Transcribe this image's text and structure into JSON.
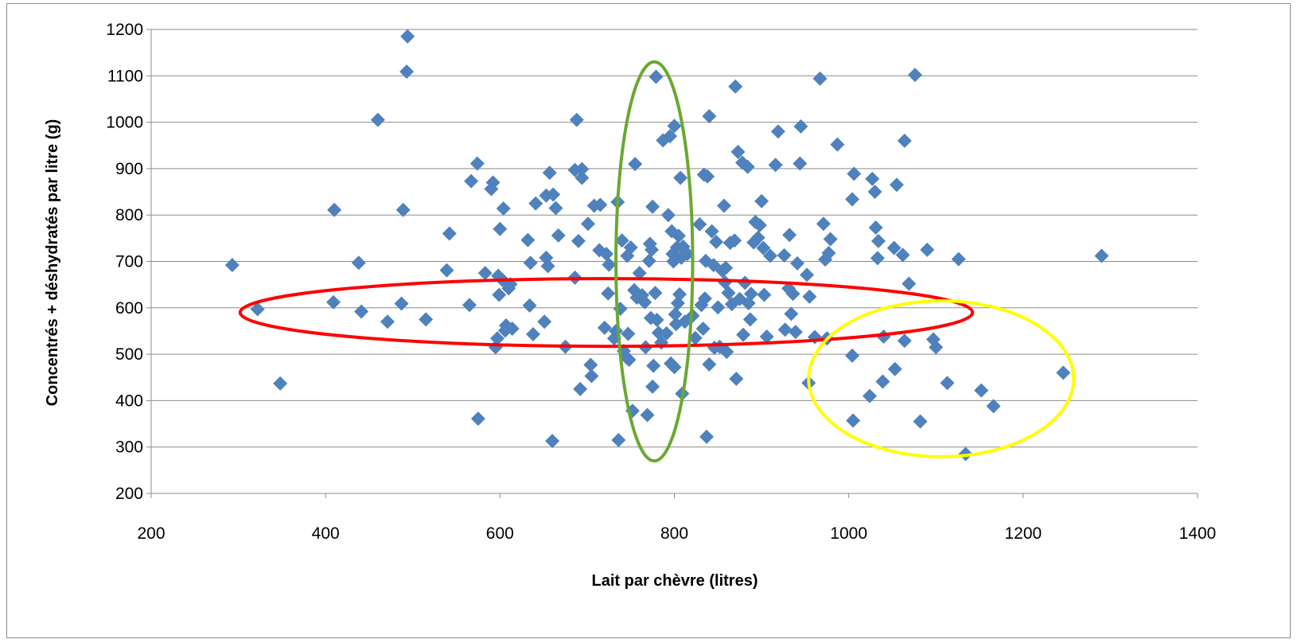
{
  "chart_data": {
    "type": "scatter",
    "title": "",
    "xlabel": "Lait par chèvre (litres)",
    "ylabel": "Concentrés + déshydratés par litre (g)",
    "xlim": [
      200,
      1400
    ],
    "ylim": [
      200,
      1200
    ],
    "x_ticks": [
      200,
      400,
      600,
      800,
      1000,
      1200,
      1400
    ],
    "y_ticks": [
      200,
      300,
      400,
      500,
      600,
      700,
      800,
      900,
      1000,
      1100,
      1200
    ],
    "grid": "horizontal",
    "legend": "none",
    "marker": "diamond",
    "marker_color": "#4f81bd",
    "points": [
      [
        293,
        692
      ],
      [
        322,
        597
      ],
      [
        348,
        437
      ],
      [
        410,
        811
      ],
      [
        409,
        612
      ],
      [
        438,
        697
      ],
      [
        441,
        592
      ],
      [
        460,
        1005
      ],
      [
        471,
        570
      ],
      [
        487,
        609
      ],
      [
        489,
        811
      ],
      [
        493,
        1109
      ],
      [
        494,
        1185
      ],
      [
        515,
        575
      ],
      [
        539,
        681
      ],
      [
        542,
        760
      ],
      [
        565,
        606
      ],
      [
        567,
        873
      ],
      [
        574,
        911
      ],
      [
        575,
        361
      ],
      [
        583,
        675
      ],
      [
        590,
        856
      ],
      [
        592,
        870
      ],
      [
        595,
        515
      ],
      [
        597,
        534
      ],
      [
        598,
        669
      ],
      [
        599,
        628
      ],
      [
        600,
        770
      ],
      [
        603,
        660
      ],
      [
        604,
        814
      ],
      [
        606,
        551
      ],
      [
        607,
        562
      ],
      [
        610,
        642
      ],
      [
        612,
        651
      ],
      [
        614,
        555
      ],
      [
        632,
        746
      ],
      [
        634,
        605
      ],
      [
        635,
        697
      ],
      [
        638,
        543
      ],
      [
        641,
        825
      ],
      [
        651,
        570
      ],
      [
        653,
        708
      ],
      [
        653,
        842
      ],
      [
        655,
        690
      ],
      [
        657,
        891
      ],
      [
        660,
        313
      ],
      [
        661,
        844
      ],
      [
        664,
        815
      ],
      [
        667,
        756
      ],
      [
        675,
        516
      ],
      [
        686,
        897
      ],
      [
        686,
        665
      ],
      [
        688,
        1005
      ],
      [
        690,
        744
      ],
      [
        692,
        425
      ],
      [
        694,
        880
      ],
      [
        694,
        899
      ],
      [
        701,
        781
      ],
      [
        704,
        477
      ],
      [
        705,
        453
      ],
      [
        708,
        820
      ],
      [
        714,
        724
      ],
      [
        715,
        822
      ],
      [
        720,
        557
      ],
      [
        722,
        716
      ],
      [
        724,
        631
      ],
      [
        725,
        693
      ],
      [
        731,
        534
      ],
      [
        733,
        550
      ],
      [
        735,
        828
      ],
      [
        736,
        315
      ],
      [
        738,
        598
      ],
      [
        740,
        745
      ],
      [
        742,
        507
      ],
      [
        745,
        493
      ],
      [
        746,
        712
      ],
      [
        747,
        544
      ],
      [
        748,
        488
      ],
      [
        750,
        730
      ],
      [
        752,
        378
      ],
      [
        754,
        638
      ],
      [
        755,
        910
      ],
      [
        757,
        622
      ],
      [
        760,
        675
      ],
      [
        763,
        627
      ],
      [
        766,
        612
      ],
      [
        767,
        515
      ],
      [
        769,
        369
      ],
      [
        771,
        701
      ],
      [
        772,
        738
      ],
      [
        773,
        578
      ],
      [
        774,
        725
      ],
      [
        775,
        430
      ],
      [
        775,
        818
      ],
      [
        776,
        475
      ],
      [
        778,
        632
      ],
      [
        779,
        1098
      ],
      [
        780,
        574
      ],
      [
        782,
        546
      ],
      [
        785,
        525
      ],
      [
        787,
        961
      ],
      [
        791,
        545
      ],
      [
        793,
        800
      ],
      [
        795,
        970
      ],
      [
        796,
        480
      ],
      [
        797,
        765
      ],
      [
        798,
        716
      ],
      [
        799,
        700
      ],
      [
        800,
        992
      ],
      [
        800,
        472
      ],
      [
        801,
        586
      ],
      [
        802,
        565
      ],
      [
        803,
        730
      ],
      [
        804,
        610
      ],
      [
        805,
        755
      ],
      [
        806,
        629
      ],
      [
        807,
        880
      ],
      [
        808,
        708
      ],
      [
        809,
        415
      ],
      [
        810,
        732
      ],
      [
        812,
        570
      ],
      [
        815,
        716
      ],
      [
        821,
        583
      ],
      [
        824,
        535
      ],
      [
        829,
        780
      ],
      [
        831,
        606
      ],
      [
        833,
        555
      ],
      [
        834,
        887
      ],
      [
        835,
        620
      ],
      [
        836,
        701
      ],
      [
        837,
        322
      ],
      [
        838,
        883
      ],
      [
        840,
        1013
      ],
      [
        840,
        478
      ],
      [
        843,
        765
      ],
      [
        845,
        692
      ],
      [
        846,
        514
      ],
      [
        848,
        742
      ],
      [
        850,
        601
      ],
      [
        852,
        516
      ],
      [
        855,
        680
      ],
      [
        857,
        820
      ],
      [
        858,
        655
      ],
      [
        859,
        686
      ],
      [
        860,
        505
      ],
      [
        862,
        632
      ],
      [
        864,
        740
      ],
      [
        866,
        608
      ],
      [
        869,
        745
      ],
      [
        870,
        1077
      ],
      [
        871,
        447
      ],
      [
        873,
        936
      ],
      [
        875,
        619
      ],
      [
        878,
        913
      ],
      [
        879,
        542
      ],
      [
        881,
        654
      ],
      [
        884,
        904
      ],
      [
        885,
        610
      ],
      [
        887,
        575
      ],
      [
        888,
        630
      ],
      [
        891,
        741
      ],
      [
        893,
        785
      ],
      [
        896,
        751
      ],
      [
        898,
        778
      ],
      [
        900,
        830
      ],
      [
        902,
        729
      ],
      [
        903,
        628
      ],
      [
        906,
        538
      ],
      [
        910,
        712
      ],
      [
        916,
        908
      ],
      [
        919,
        980
      ],
      [
        926,
        713
      ],
      [
        927,
        553
      ],
      [
        931,
        642
      ],
      [
        932,
        757
      ],
      [
        934,
        587
      ],
      [
        936,
        630
      ],
      [
        939,
        548
      ],
      [
        941,
        696
      ],
      [
        944,
        911
      ],
      [
        945,
        991
      ],
      [
        952,
        671
      ],
      [
        954,
        438
      ],
      [
        955,
        624
      ],
      [
        961,
        537
      ],
      [
        967,
        1094
      ],
      [
        971,
        781
      ],
      [
        973,
        704
      ],
      [
        975,
        534
      ],
      [
        977,
        718
      ],
      [
        979,
        748
      ],
      [
        987,
        952
      ],
      [
        1004,
        497
      ],
      [
        1004,
        834
      ],
      [
        1005,
        357
      ],
      [
        1006,
        889
      ],
      [
        1024,
        410
      ],
      [
        1027,
        878
      ],
      [
        1030,
        850
      ],
      [
        1031,
        773
      ],
      [
        1033,
        707
      ],
      [
        1034,
        744
      ],
      [
        1039,
        441
      ],
      [
        1040,
        538
      ],
      [
        1052,
        729
      ],
      [
        1053,
        468
      ],
      [
        1055,
        865
      ],
      [
        1062,
        714
      ],
      [
        1064,
        960
      ],
      [
        1064,
        529
      ],
      [
        1069,
        652
      ],
      [
        1076,
        1102
      ],
      [
        1082,
        355
      ],
      [
        1090,
        725
      ],
      [
        1097,
        532
      ],
      [
        1100,
        515
      ],
      [
        1113,
        438
      ],
      [
        1126,
        705
      ],
      [
        1134,
        285
      ],
      [
        1152,
        422
      ],
      [
        1166,
        388
      ],
      [
        1246,
        460
      ],
      [
        1290,
        712
      ]
    ],
    "annotations": [
      {
        "shape": "ellipse",
        "color": "#ff0000",
        "cx": 722,
        "cy": 590,
        "rx": 420,
        "ry": 73
      },
      {
        "shape": "ellipse",
        "color": "#6aa832",
        "cx": 777,
        "cy": 700,
        "rx": 44,
        "ry": 430
      },
      {
        "shape": "ellipse",
        "color": "#ffff00",
        "cx": 1106,
        "cy": 447,
        "rx": 152,
        "ry": 168
      }
    ]
  }
}
